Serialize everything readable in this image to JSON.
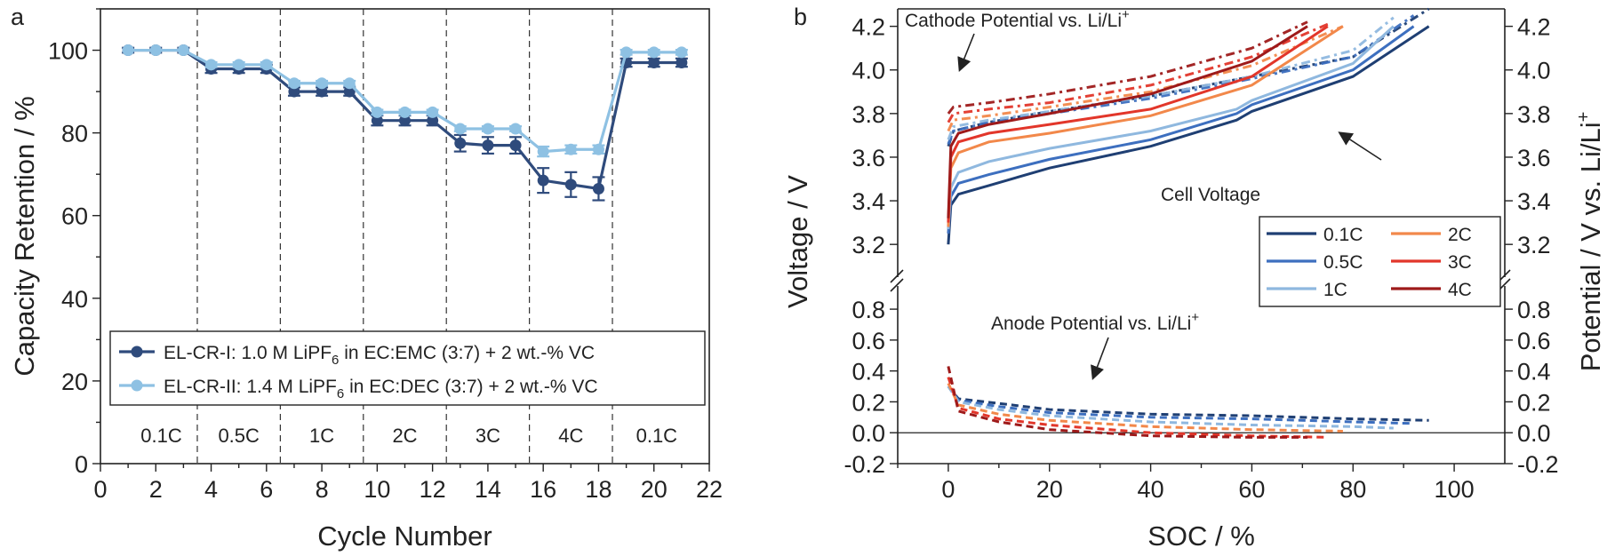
{
  "chart_data": [
    {
      "panel": "a",
      "type": "line",
      "xlabel": "Cycle Number",
      "ylabel": "Capacity Retention / %",
      "xlim": [
        0,
        22
      ],
      "ylim": [
        0,
        110
      ],
      "xticks": [
        0,
        2,
        4,
        6,
        8,
        10,
        12,
        14,
        16,
        18,
        20,
        22
      ],
      "yticks": [
        0,
        20,
        40,
        60,
        80,
        100
      ],
      "grid": false,
      "legend_placement": "lower-center",
      "series": [
        {
          "name": "EL-CR-I: 1.0 M LiPF",
          "name_subscript": "6",
          "name_suffix": " in EC:EMC (3:7) + 2 wt.-% VC",
          "color": "#2f4b7c",
          "x": [
            1,
            2,
            3,
            4,
            5,
            6,
            7,
            8,
            9,
            10,
            11,
            12,
            13,
            14,
            15,
            16,
            17,
            18,
            19,
            20,
            21
          ],
          "y": [
            100,
            100,
            100,
            95.5,
            95.5,
            95.5,
            90,
            90,
            90,
            83,
            83,
            83,
            77.5,
            77,
            77,
            68.5,
            67.5,
            66.5,
            97,
            97,
            97
          ],
          "err": [
            0.6,
            0.6,
            0.6,
            1,
            1,
            1,
            1,
            1,
            1,
            1.2,
            1.2,
            1.2,
            2,
            2,
            2,
            3,
            3,
            2.8,
            1,
            1,
            1
          ]
        },
        {
          "name": "EL-CR-II: 1.4 M LiPF",
          "name_subscript": "6",
          "name_suffix": " in EC:DEC (3:7) + 2 wt.-% VC",
          "color": "#8ec1e3",
          "x": [
            1,
            2,
            3,
            4,
            5,
            6,
            7,
            8,
            9,
            10,
            11,
            12,
            13,
            14,
            15,
            16,
            17,
            18,
            19,
            20,
            21
          ],
          "y": [
            100,
            100,
            100,
            96.5,
            96.5,
            96.5,
            92,
            92,
            92,
            85,
            85,
            85,
            81,
            81,
            81,
            75.5,
            76,
            76,
            99.5,
            99.5,
            99.5
          ],
          "err": [
            0.5,
            0.5,
            0.5,
            0.6,
            0.6,
            0.6,
            0.6,
            0.6,
            0.6,
            0.6,
            0.6,
            0.6,
            0.6,
            0.6,
            0.6,
            1.2,
            1,
            1,
            0.6,
            0.6,
            0.6
          ]
        }
      ],
      "rate_dividers_x": [
        3.5,
        6.5,
        9.5,
        12.5,
        15.5,
        18.5
      ],
      "rate_labels": [
        "0.1C",
        "0.5C",
        "1C",
        "2C",
        "3C",
        "4C",
        "0.1C"
      ]
    },
    {
      "panel": "b",
      "type": "line",
      "xlabel": "SOC / %",
      "ylabel_left": "Voltage / V",
      "ylabel_right": "Potential / V vs. Li/Li",
      "ylabel_right_superscript": "+",
      "xlim": [
        -10,
        110
      ],
      "xticks": [
        0,
        20,
        40,
        60,
        80,
        100
      ],
      "upper_ylim": [
        3.05,
        4.28
      ],
      "upper_yticks": [
        "3.2",
        "3.4",
        "3.6",
        "3.8",
        "4.0",
        "4.2"
      ],
      "lower_ylim": [
        -0.2,
        0.95
      ],
      "lower_yticks": [
        "-0.2",
        "0.0",
        "0.2",
        "0.4",
        "0.6",
        "0.8"
      ],
      "annotations": {
        "cathode": "Cathode Potential vs. Li/Li",
        "cathode_sup": "+",
        "cell": "Cell Voltage",
        "anode": "Anode Potential vs. Li/Li",
        "anode_sup": "+"
      },
      "legend_placement": "right",
      "series": [
        {
          "name": "0.1C",
          "color": "#1f3f73",
          "end_soc": 95,
          "cell": [
            [
              0,
              3.2
            ],
            [
              0.5,
              3.38
            ],
            [
              2,
              3.43
            ],
            [
              8,
              3.47
            ],
            [
              20,
              3.55
            ],
            [
              40,
              3.65
            ],
            [
              57,
              3.77
            ],
            [
              60,
              3.81
            ],
            [
              80,
              3.97
            ],
            [
              95,
              4.2
            ]
          ],
          "cathode": [
            [
              0,
              3.65
            ],
            [
              1,
              3.72
            ],
            [
              8,
              3.76
            ],
            [
              20,
              3.81
            ],
            [
              40,
              3.88
            ],
            [
              60,
              3.97
            ],
            [
              80,
              4.06
            ],
            [
              95,
              4.28
            ]
          ],
          "anode": [
            [
              0,
              0.3
            ],
            [
              2,
              0.22
            ],
            [
              10,
              0.19
            ],
            [
              20,
              0.15
            ],
            [
              40,
              0.12
            ],
            [
              60,
              0.11
            ],
            [
              80,
              0.09
            ],
            [
              95,
              0.08
            ]
          ]
        },
        {
          "name": "0.5C",
          "color": "#3d6fbf",
          "end_soc": 92,
          "cell": [
            [
              0,
              3.25
            ],
            [
              0.5,
              3.42
            ],
            [
              2,
              3.48
            ],
            [
              8,
              3.52
            ],
            [
              20,
              3.59
            ],
            [
              40,
              3.68
            ],
            [
              57,
              3.8
            ],
            [
              60,
              3.84
            ],
            [
              80,
              4.0
            ],
            [
              92,
              4.2
            ]
          ],
          "cathode": [
            [
              0,
              3.66
            ],
            [
              1,
              3.72
            ],
            [
              8,
              3.76
            ],
            [
              20,
              3.8
            ],
            [
              40,
              3.87
            ],
            [
              60,
              3.96
            ],
            [
              80,
              4.06
            ],
            [
              92,
              4.25
            ]
          ],
          "anode": [
            [
              0,
              0.3
            ],
            [
              2,
              0.21
            ],
            [
              10,
              0.17
            ],
            [
              20,
              0.13
            ],
            [
              40,
              0.1
            ],
            [
              60,
              0.09
            ],
            [
              80,
              0.07
            ],
            [
              92,
              0.06
            ]
          ]
        },
        {
          "name": "1C",
          "color": "#8fb8df",
          "end_soc": 88,
          "cell": [
            [
              0,
              3.27
            ],
            [
              0.5,
              3.46
            ],
            [
              2,
              3.53
            ],
            [
              8,
              3.58
            ],
            [
              20,
              3.64
            ],
            [
              40,
              3.72
            ],
            [
              57,
              3.82
            ],
            [
              60,
              3.86
            ],
            [
              80,
              4.03
            ],
            [
              88,
              4.2
            ]
          ],
          "cathode": [
            [
              0,
              3.68
            ],
            [
              1,
              3.74
            ],
            [
              8,
              3.77
            ],
            [
              20,
              3.81
            ],
            [
              40,
              3.88
            ],
            [
              60,
              3.97
            ],
            [
              80,
              4.09
            ],
            [
              88,
              4.24
            ]
          ],
          "anode": [
            [
              0,
              0.3
            ],
            [
              2,
              0.2
            ],
            [
              10,
              0.15
            ],
            [
              20,
              0.11
            ],
            [
              40,
              0.07
            ],
            [
              60,
              0.05
            ],
            [
              80,
              0.04
            ],
            [
              88,
              0.03
            ]
          ]
        },
        {
          "name": "2C",
          "color": "#f2884a",
          "end_soc": 78,
          "cell": [
            [
              0,
              3.28
            ],
            [
              0.5,
              3.55
            ],
            [
              2,
              3.62
            ],
            [
              8,
              3.67
            ],
            [
              20,
              3.71
            ],
            [
              40,
              3.79
            ],
            [
              60,
              3.93
            ],
            [
              78,
              4.2
            ]
          ],
          "cathode": [
            [
              0,
              3.72
            ],
            [
              1,
              3.77
            ],
            [
              8,
              3.79
            ],
            [
              20,
              3.83
            ],
            [
              40,
              3.9
            ],
            [
              60,
              4.02
            ],
            [
              78,
              4.2
            ]
          ],
          "anode": [
            [
              0,
              0.32
            ],
            [
              2,
              0.18
            ],
            [
              10,
              0.12
            ],
            [
              20,
              0.08
            ],
            [
              40,
              0.04
            ],
            [
              60,
              0.02
            ],
            [
              78,
              0.01
            ]
          ]
        },
        {
          "name": "3C",
          "color": "#e2362a",
          "end_soc": 75,
          "cell": [
            [
              0,
              3.3
            ],
            [
              0.5,
              3.6
            ],
            [
              2,
              3.67
            ],
            [
              8,
              3.71
            ],
            [
              20,
              3.75
            ],
            [
              40,
              3.82
            ],
            [
              60,
              3.97
            ],
            [
              75,
              4.2
            ]
          ],
          "cathode": [
            [
              0,
              3.76
            ],
            [
              1,
              3.8
            ],
            [
              8,
              3.82
            ],
            [
              20,
              3.85
            ],
            [
              40,
              3.93
            ],
            [
              60,
              4.06
            ],
            [
              75,
              4.21
            ]
          ],
          "anode": [
            [
              0,
              0.36
            ],
            [
              2,
              0.16
            ],
            [
              10,
              0.09
            ],
            [
              20,
              0.05
            ],
            [
              40,
              0.0
            ],
            [
              60,
              -0.02
            ],
            [
              75,
              -0.03
            ]
          ]
        },
        {
          "name": "4C",
          "color": "#9e1a1a",
          "end_soc": 71,
          "cell": [
            [
              0,
              3.32
            ],
            [
              0.5,
              3.65
            ],
            [
              2,
              3.71
            ],
            [
              8,
              3.75
            ],
            [
              20,
              3.8
            ],
            [
              40,
              3.89
            ],
            [
              60,
              4.04
            ],
            [
              71,
              4.2
            ]
          ],
          "cathode": [
            [
              0,
              3.8
            ],
            [
              1,
              3.83
            ],
            [
              8,
              3.85
            ],
            [
              20,
              3.89
            ],
            [
              40,
              3.97
            ],
            [
              60,
              4.1
            ],
            [
              71,
              4.22
            ]
          ],
          "anode": [
            [
              0,
              0.43
            ],
            [
              2,
              0.14
            ],
            [
              10,
              0.07
            ],
            [
              20,
              0.02
            ],
            [
              40,
              -0.02
            ],
            [
              60,
              -0.03
            ],
            [
              71,
              -0.03
            ]
          ]
        }
      ]
    }
  ]
}
